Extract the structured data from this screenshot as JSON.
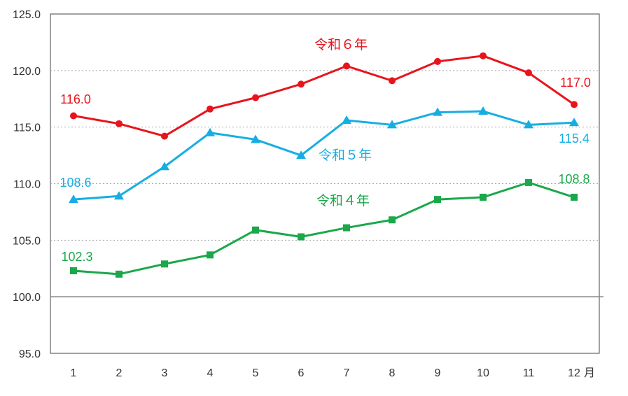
{
  "chart_data": {
    "type": "line",
    "categories": [
      "1",
      "2",
      "3",
      "4",
      "5",
      "6",
      "7",
      "8",
      "9",
      "10",
      "11",
      "12"
    ],
    "x_unit_suffix": "月",
    "ylim": [
      95.0,
      125.0
    ],
    "yticks": [
      "95.0",
      "100.0",
      "105.0",
      "110.0",
      "115.0",
      "120.0",
      "125.0"
    ],
    "reference_line": 100.0,
    "grid": "dotted horizontal",
    "legend": "inline labels",
    "series": [
      {
        "name": "令和６年",
        "color": "#e8141c",
        "marker": "circle",
        "values": [
          116.0,
          115.3,
          114.2,
          116.6,
          117.6,
          118.8,
          120.4,
          119.1,
          120.8,
          121.3,
          119.8,
          117.0
        ],
        "first_label": "116.0",
        "last_label": "117.0"
      },
      {
        "name": "令和５年",
        "color": "#16aee2",
        "marker": "triangle",
        "values": [
          108.6,
          108.9,
          111.5,
          114.5,
          113.9,
          112.5,
          115.6,
          115.2,
          116.3,
          116.4,
          115.2,
          115.4
        ],
        "first_label": "108.6",
        "last_label": "115.4"
      },
      {
        "name": "令和４年",
        "color": "#1aa84a",
        "marker": "square",
        "values": [
          102.3,
          102.0,
          102.9,
          103.7,
          105.9,
          105.3,
          106.1,
          106.8,
          108.6,
          108.8,
          110.1,
          108.8
        ],
        "first_label": "102.3",
        "last_label": "108.8"
      }
    ]
  }
}
